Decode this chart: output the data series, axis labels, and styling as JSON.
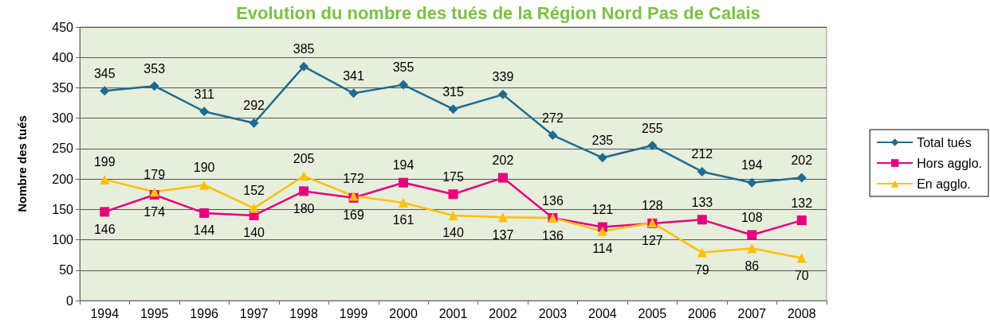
{
  "chart_data": {
    "type": "line",
    "title": "Evolution du nombre des tués de la Région Nord Pas de Calais",
    "ylabel": "Nombre des tués",
    "categories": [
      "1994",
      "1995",
      "1996",
      "1997",
      "1998",
      "1999",
      "2000",
      "2001",
      "2002",
      "2003",
      "2004",
      "2005",
      "2006",
      "2007",
      "2008"
    ],
    "series": [
      {
        "name": "Total tués",
        "color": "#1f6b8f",
        "marker": "diamond",
        "values": [
          345,
          353,
          311,
          292,
          385,
          341,
          355,
          315,
          339,
          272,
          235,
          255,
          212,
          194,
          202
        ]
      },
      {
        "name": "Hors agglo.",
        "color": "#e5007e",
        "marker": "square",
        "values": [
          146,
          174,
          144,
          140,
          180,
          169,
          194,
          175,
          202,
          136,
          121,
          127,
          133,
          108,
          132
        ]
      },
      {
        "name": "En agglo.",
        "color": "#ffc000",
        "marker": "triangle",
        "values": [
          199,
          179,
          190,
          152,
          205,
          172,
          161,
          140,
          137,
          136,
          114,
          128,
          79,
          86,
          70
        ]
      }
    ],
    "ylim": [
      0,
      450
    ],
    "yticks": [
      0,
      50,
      100,
      150,
      200,
      250,
      300,
      350,
      400,
      450
    ],
    "grid": "y",
    "legend": "right",
    "data_labels": true
  }
}
